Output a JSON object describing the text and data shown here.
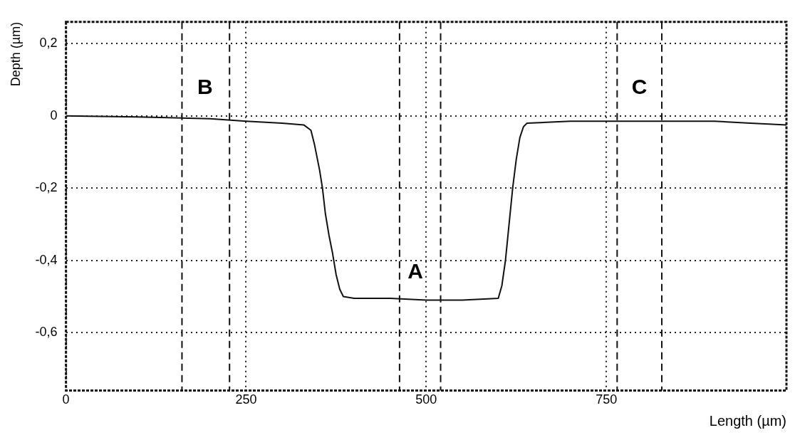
{
  "chart_data": {
    "type": "line",
    "xlabel": "Length (µm)",
    "ylabel": "Depth (µm)",
    "x": [
      0,
      100,
      200,
      250,
      300,
      330,
      340,
      345,
      352,
      356,
      360,
      365,
      370,
      375,
      380,
      385,
      400,
      450,
      500,
      550,
      600,
      605,
      610,
      615,
      620,
      625,
      630,
      635,
      640,
      700,
      800,
      900,
      950,
      1000
    ],
    "series": [
      {
        "color": "#111111",
        "values": [
          0,
          -0.003,
          -0.008,
          -0.015,
          -0.02,
          -0.025,
          -0.04,
          -0.08,
          -0.15,
          -0.2,
          -0.27,
          -0.33,
          -0.38,
          -0.44,
          -0.48,
          -0.5,
          -0.505,
          -0.505,
          -0.51,
          -0.51,
          -0.505,
          -0.47,
          -0.4,
          -0.3,
          -0.2,
          -0.12,
          -0.06,
          -0.03,
          -0.02,
          -0.015,
          -0.015,
          -0.015,
          -0.02,
          -0.025
        ]
      }
    ],
    "xlim": [
      0,
      1000
    ],
    "ylim": [
      -0.76,
      0.26
    ],
    "xticks": [
      0,
      250,
      500,
      750
    ],
    "yticks": [
      {
        "value": 0.2,
        "label": "0,2"
      },
      0,
      {
        "value": -0.2,
        "label": "-0,2"
      },
      {
        "value": -0.4,
        "label": "-0,4"
      },
      {
        "value": -0.6,
        "label": "-0,6"
      }
    ],
    "grid": true,
    "marker": "none",
    "line_style": "solid",
    "legend": false,
    "ref_lines": [
      {
        "axis": "x",
        "value": 161,
        "color": "#111111",
        "line_style": "dashed"
      },
      {
        "axis": "x",
        "value": 227,
        "color": "#111111",
        "line_style": "dashed"
      },
      {
        "axis": "x",
        "value": 463,
        "color": "#111111",
        "line_style": "dashed"
      },
      {
        "axis": "x",
        "value": 520,
        "color": "#111111",
        "line_style": "dashed"
      },
      {
        "axis": "x",
        "value": 765,
        "color": "#111111",
        "line_style": "dashed"
      },
      {
        "axis": "x",
        "value": 827,
        "color": "#111111",
        "line_style": "dashed"
      }
    ],
    "annotations": [
      "B",
      "A",
      "C"
    ]
  }
}
